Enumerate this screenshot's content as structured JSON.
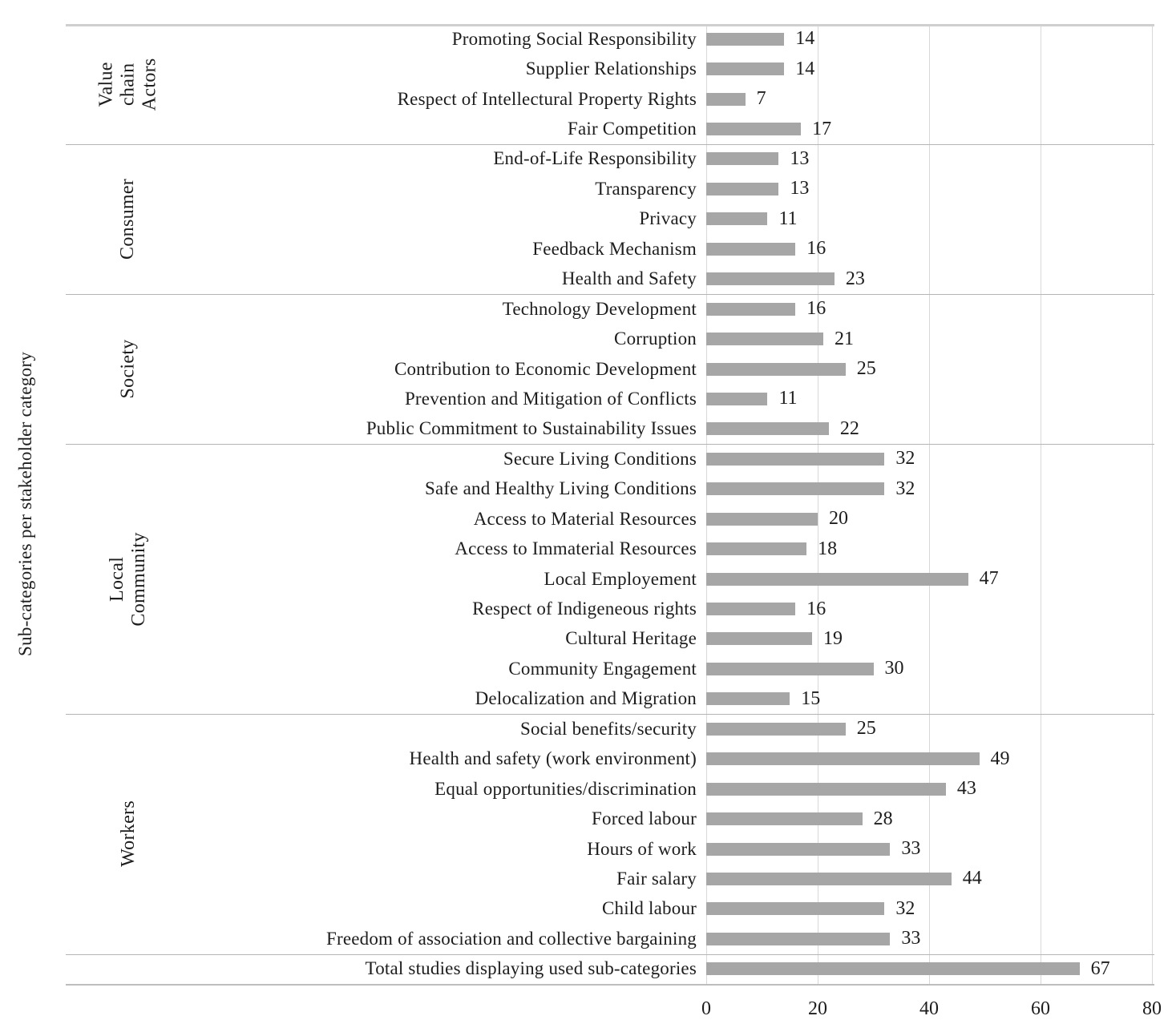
{
  "chart_data": {
    "type": "bar",
    "orientation": "horizontal",
    "title": "",
    "xlabel": "",
    "ylabel": "Sub-categories per stakeholder category",
    "xlim": [
      0,
      80
    ],
    "x_ticks": [
      0,
      20,
      40,
      60,
      80
    ],
    "grid": true,
    "legend": "none",
    "bar_color": "#a6a6a6",
    "grid_color": "#d8d8d8",
    "separator_color": "#b5b5b5",
    "groups": [
      {
        "name": "Value\nchain\nActors",
        "items": [
          {
            "label": "Promoting Social Responsibility",
            "value": 14
          },
          {
            "label": "Supplier Relationships",
            "value": 14
          },
          {
            "label": "Respect of Intellectural Property Rights",
            "value": 7
          },
          {
            "label": "Fair Competition",
            "value": 17
          }
        ]
      },
      {
        "name": "Consumer",
        "items": [
          {
            "label": "End-of-Life Responsibility",
            "value": 13
          },
          {
            "label": "Transparency",
            "value": 13
          },
          {
            "label": "Privacy",
            "value": 11
          },
          {
            "label": "Feedback Mechanism",
            "value": 16
          },
          {
            "label": "Health and Safety",
            "value": 23
          }
        ]
      },
      {
        "name": "Society",
        "items": [
          {
            "label": "Technology Development",
            "value": 16
          },
          {
            "label": "Corruption",
            "value": 21
          },
          {
            "label": "Contribution to Economic Development",
            "value": 25
          },
          {
            "label": "Prevention and Mitigation of Conflicts",
            "value": 11
          },
          {
            "label": "Public Commitment to Sustainability Issues",
            "value": 22
          }
        ]
      },
      {
        "name": "Local Community",
        "items": [
          {
            "label": "Secure Living Conditions",
            "value": 32
          },
          {
            "label": "Safe and Healthy Living Conditions",
            "value": 32
          },
          {
            "label": "Access to Material Resources",
            "value": 20
          },
          {
            "label": "Access to Immaterial Resources",
            "value": 18
          },
          {
            "label": "Local Employement",
            "value": 47
          },
          {
            "label": "Respect of Indigeneous rights",
            "value": 16
          },
          {
            "label": "Cultural Heritage",
            "value": 19
          },
          {
            "label": "Community Engagement",
            "value": 30
          },
          {
            "label": "Delocalization and Migration",
            "value": 15
          }
        ]
      },
      {
        "name": "Workers",
        "items": [
          {
            "label": "Social benefits/security",
            "value": 25
          },
          {
            "label": "Health and safety (work environment)",
            "value": 49
          },
          {
            "label": "Equal opportunities/discrimination",
            "value": 43
          },
          {
            "label": "Forced labour",
            "value": 28
          },
          {
            "label": "Hours of work",
            "value": 33
          },
          {
            "label": "Fair salary",
            "value": 44
          },
          {
            "label": "Child labour",
            "value": 32
          },
          {
            "label": "Freedom of association and collective bargaining",
            "value": 33
          }
        ]
      },
      {
        "name": "",
        "items": [
          {
            "label": "Total studies displaying used sub-categories",
            "value": 67
          }
        ]
      }
    ]
  }
}
